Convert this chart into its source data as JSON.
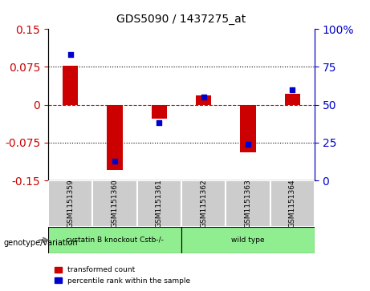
{
  "title": "GDS5090 / 1437275_at",
  "samples": [
    "GSM1151359",
    "GSM1151360",
    "GSM1151361",
    "GSM1151362",
    "GSM1151363",
    "GSM1151364"
  ],
  "red_values": [
    0.078,
    -0.13,
    -0.028,
    0.018,
    -0.095,
    0.022
  ],
  "blue_values": [
    83,
    13,
    38,
    55,
    24,
    60
  ],
  "groups": [
    {
      "label": "cystatin B knockout Cstb-/-",
      "samples": [
        0,
        1,
        2
      ],
      "color": "#90EE90"
    },
    {
      "label": "wild type",
      "samples": [
        3,
        4,
        5
      ],
      "color": "#90EE90"
    }
  ],
  "group_label": "genotype/variation",
  "ylim_left": [
    -0.15,
    0.15
  ],
  "ylim_right": [
    0,
    100
  ],
  "yticks_left": [
    -0.15,
    -0.075,
    0,
    0.075,
    0.15
  ],
  "yticks_right": [
    0,
    25,
    50,
    75,
    100
  ],
  "hlines": [
    0.075,
    0,
    -0.075
  ],
  "red_color": "#CC0000",
  "blue_color": "#0000CC",
  "bar_width": 0.35,
  "legend_labels": [
    "transformed count",
    "percentile rank within the sample"
  ],
  "plot_bg": "#FFFFFF",
  "tick_label_gray": "#AAAAAA",
  "sample_box_color": "#CCCCCC"
}
